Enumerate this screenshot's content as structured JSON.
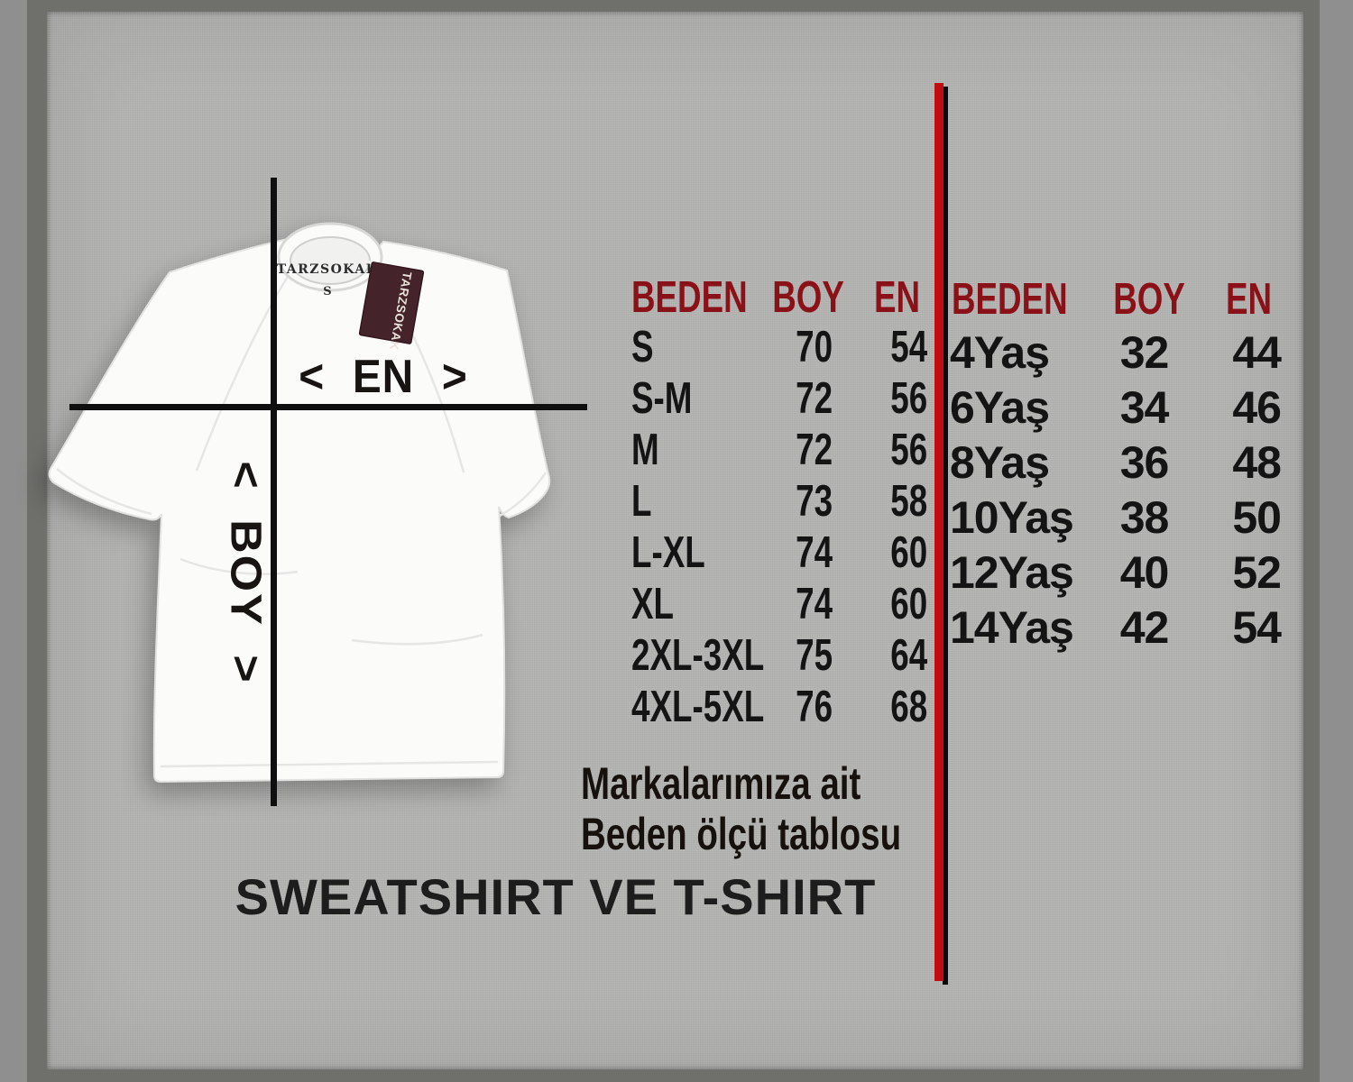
{
  "brand": "TARZSOKAK",
  "shirt": {
    "neck_label": "TARZSOKAK",
    "neck_size": "S",
    "hang_tag_text": "TARZSOKAK",
    "width_axis_label": "< EN >",
    "length_axis_label": "< BOY >"
  },
  "adult_table": {
    "headers": [
      "BEDEN",
      "BOY",
      "EN"
    ],
    "rows": [
      [
        "S",
        "70",
        "54"
      ],
      [
        "S-M",
        "72",
        "56"
      ],
      [
        "M",
        "72",
        "56"
      ],
      [
        "L",
        "73",
        "58"
      ],
      [
        "L-XL",
        "74",
        "60"
      ],
      [
        "XL",
        "74",
        "60"
      ],
      [
        "2XL-3XL",
        "75",
        "64"
      ],
      [
        "4XL-5XL",
        "76",
        "68"
      ]
    ]
  },
  "kids_table": {
    "headers": [
      "BEDEN",
      "BOY",
      "EN"
    ],
    "rows": [
      [
        "4Yaş",
        "32",
        "44"
      ],
      [
        "6Yaş",
        "34",
        "46"
      ],
      [
        "8Yaş",
        "36",
        "48"
      ],
      [
        "10Yaş",
        "38",
        "50"
      ],
      [
        "12Yaş",
        "40",
        "52"
      ],
      [
        "14Yaş",
        "42",
        "54"
      ]
    ]
  },
  "notes": {
    "line1": "Markalarımıza ait",
    "line2": "Beden ölçü tablosu"
  },
  "title": "SWEATSHIRT VE T-SHIRT",
  "colors": {
    "background_gray": "#b2b2b0",
    "frame_gray": "#6f6f6c",
    "header_red": "#8a1117",
    "divider_red": "#bf0d11",
    "text_black": "#141414",
    "tag_maroon": "#45232b",
    "shirt_white": "#fbfbfa"
  }
}
